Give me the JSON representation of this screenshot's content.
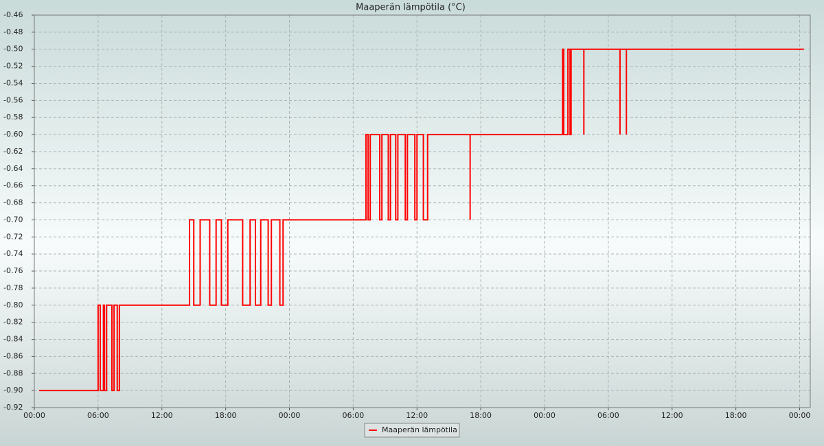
{
  "chart_data": {
    "type": "line",
    "title": "Maaperän lämpötila (°C)",
    "xlim": [
      0,
      73
    ],
    "xticks": [
      {
        "value": 0,
        "label": "00:00"
      },
      {
        "value": 6,
        "label": "06:00"
      },
      {
        "value": 12,
        "label": "12:00"
      },
      {
        "value": 18,
        "label": "18:00"
      },
      {
        "value": 24,
        "label": "00:00"
      },
      {
        "value": 30,
        "label": "06:00"
      },
      {
        "value": 36,
        "label": "12:00"
      },
      {
        "value": 42,
        "label": "18:00"
      },
      {
        "value": 48,
        "label": "00:00"
      },
      {
        "value": 54,
        "label": "06:00"
      },
      {
        "value": 60,
        "label": "12:00"
      },
      {
        "value": 66,
        "label": "18:00"
      },
      {
        "value": 72,
        "label": "00:00"
      }
    ],
    "ylim": [
      -0.92,
      -0.46
    ],
    "yticks": [
      {
        "value": -0.92,
        "label": "-0.92"
      },
      {
        "value": -0.9,
        "label": "-0.90"
      },
      {
        "value": -0.88,
        "label": "-0.88"
      },
      {
        "value": -0.86,
        "label": "-0.86"
      },
      {
        "value": -0.84,
        "label": "-0.84"
      },
      {
        "value": -0.82,
        "label": "-0.82"
      },
      {
        "value": -0.8,
        "label": "-0.80"
      },
      {
        "value": -0.78,
        "label": "-0.78"
      },
      {
        "value": -0.76,
        "label": "-0.76"
      },
      {
        "value": -0.74,
        "label": "-0.74"
      },
      {
        "value": -0.72,
        "label": "-0.72"
      },
      {
        "value": -0.7,
        "label": "-0.70"
      },
      {
        "value": -0.68,
        "label": "-0.68"
      },
      {
        "value": -0.66,
        "label": "-0.66"
      },
      {
        "value": -0.64,
        "label": "-0.64"
      },
      {
        "value": -0.62,
        "label": "-0.62"
      },
      {
        "value": -0.6,
        "label": "-0.60"
      },
      {
        "value": -0.58,
        "label": "-0.58"
      },
      {
        "value": -0.56,
        "label": "-0.56"
      },
      {
        "value": -0.54,
        "label": "-0.54"
      },
      {
        "value": -0.52,
        "label": "-0.52"
      },
      {
        "value": -0.5,
        "label": "-0.50"
      },
      {
        "value": -0.48,
        "label": "-0.48"
      },
      {
        "value": -0.46,
        "label": "-0.46"
      }
    ],
    "grid": true,
    "legend": "bottom",
    "x": [
      0.45,
      6.0,
      6.0,
      6.2,
      6.2,
      6.5,
      6.5,
      6.6,
      6.6,
      6.8,
      6.8,
      7.3,
      7.3,
      7.5,
      7.5,
      7.8,
      7.8,
      8.0,
      8.0,
      14.6,
      14.6,
      15.0,
      15.0,
      15.6,
      15.6,
      16.5,
      16.5,
      17.1,
      17.1,
      17.6,
      17.6,
      18.2,
      18.2,
      19.6,
      19.6,
      20.3,
      20.3,
      20.8,
      20.8,
      21.3,
      21.3,
      22.0,
      22.0,
      22.3,
      22.3,
      23.1,
      23.1,
      23.4,
      23.4,
      31.2,
      31.2,
      31.4,
      31.4,
      31.6,
      31.6,
      32.5,
      32.5,
      32.7,
      32.7,
      33.3,
      33.3,
      33.5,
      33.5,
      34.0,
      34.0,
      34.2,
      34.2,
      34.9,
      34.9,
      35.1,
      35.1,
      35.8,
      35.8,
      36.0,
      36.0,
      36.6,
      36.6,
      37.0,
      37.0,
      41.0,
      41.0,
      41.0,
      49.7,
      49.7,
      49.8,
      49.8,
      50.2,
      50.2,
      50.4,
      50.4,
      50.5,
      50.5,
      51.7,
      51.7,
      51.7,
      55.1,
      55.1,
      55.1,
      55.7,
      55.7,
      55.7,
      72.4
    ],
    "series": [
      {
        "name": "Maaperän lämpötila",
        "color": "#ff0000",
        "values": [
          -0.9,
          -0.9,
          -0.8,
          -0.8,
          -0.9,
          -0.9,
          -0.8,
          -0.8,
          -0.9,
          -0.9,
          -0.8,
          -0.8,
          -0.9,
          -0.9,
          -0.8,
          -0.8,
          -0.9,
          -0.9,
          -0.8,
          -0.8,
          -0.7,
          -0.7,
          -0.8,
          -0.8,
          -0.7,
          -0.7,
          -0.8,
          -0.8,
          -0.7,
          -0.7,
          -0.8,
          -0.8,
          -0.7,
          -0.7,
          -0.8,
          -0.8,
          -0.7,
          -0.7,
          -0.8,
          -0.8,
          -0.7,
          -0.7,
          -0.8,
          -0.8,
          -0.7,
          -0.7,
          -0.8,
          -0.8,
          -0.7,
          -0.7,
          -0.6,
          -0.6,
          -0.7,
          -0.7,
          -0.6,
          -0.6,
          -0.7,
          -0.7,
          -0.6,
          -0.6,
          -0.7,
          -0.7,
          -0.6,
          -0.6,
          -0.7,
          -0.7,
          -0.6,
          -0.6,
          -0.7,
          -0.7,
          -0.6,
          -0.6,
          -0.7,
          -0.7,
          -0.6,
          -0.6,
          -0.7,
          -0.7,
          -0.6,
          -0.6,
          -0.7,
          -0.6,
          -0.6,
          -0.5,
          -0.5,
          -0.6,
          -0.6,
          -0.5,
          -0.5,
          -0.6,
          -0.6,
          -0.5,
          -0.5,
          -0.6,
          -0.5,
          -0.5,
          -0.6,
          -0.5,
          -0.5,
          -0.6,
          -0.5,
          -0.5
        ]
      }
    ]
  }
}
